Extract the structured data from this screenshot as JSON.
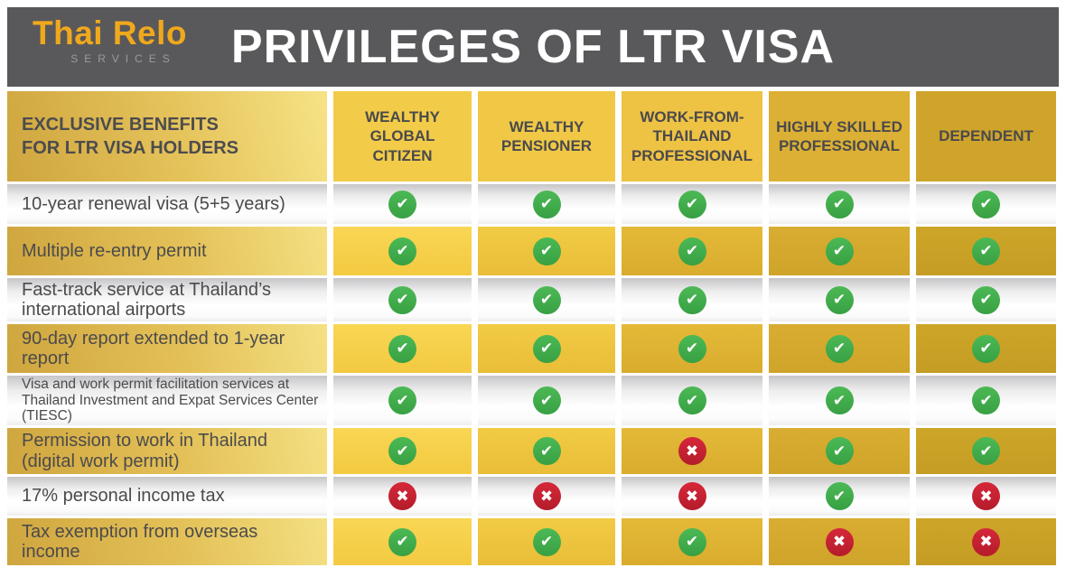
{
  "logo": {
    "name": "Thai Relo",
    "subtitle": "SERVICES"
  },
  "header": {
    "title": "PRIVILEGES OF LTR VISA"
  },
  "colors": {
    "band_background": "#59595b",
    "logo_amber": "#f0a81c",
    "gold_bright": "#f2cb48",
    "gold_dark": "#cfa42b",
    "check_green": "#3fab49",
    "cross_red": "#c92031",
    "text_dark": "#4b4b4d"
  },
  "icons": {
    "yes": "check-icon",
    "no": "cross-icon"
  },
  "chart_data": {
    "type": "table",
    "title": "PRIVILEGES OF LTR VISA",
    "corner_header": "EXCLUSIVE BENEFITS\nFOR LTR VISA HOLDERS",
    "columns": [
      "WEALTHY GLOBAL CITIZEN",
      "WEALTHY PENSIONER",
      "WORK-FROM-THAILAND PROFESSIONAL",
      "HIGHLY SKILLED PROFESSIONAL",
      "DEPENDENT"
    ],
    "rows": [
      {
        "label": "10-year renewal visa (5+5 years)",
        "values": [
          "yes",
          "yes",
          "yes",
          "yes",
          "yes"
        ]
      },
      {
        "label": "Multiple re-entry permit",
        "values": [
          "yes",
          "yes",
          "yes",
          "yes",
          "yes"
        ]
      },
      {
        "label": "Fast-track service at Thailand’s international airports",
        "values": [
          "yes",
          "yes",
          "yes",
          "yes",
          "yes"
        ]
      },
      {
        "label": "90-day report extended to 1-year report",
        "values": [
          "yes",
          "yes",
          "yes",
          "yes",
          "yes"
        ]
      },
      {
        "label": "Visa and work permit facilitation services at Thailand Investment and Expat Services Center (TIESC)",
        "values": [
          "yes",
          "yes",
          "yes",
          "yes",
          "yes"
        ]
      },
      {
        "label": "Permission to work in Thailand (digital work permit)",
        "values": [
          "yes",
          "yes",
          "no",
          "yes",
          "yes"
        ]
      },
      {
        "label": "17% personal income tax",
        "values": [
          "no",
          "no",
          "no",
          "yes",
          "no"
        ]
      },
      {
        "label": "Tax exemption from overseas income",
        "values": [
          "yes",
          "yes",
          "yes",
          "no",
          "no"
        ]
      }
    ]
  }
}
